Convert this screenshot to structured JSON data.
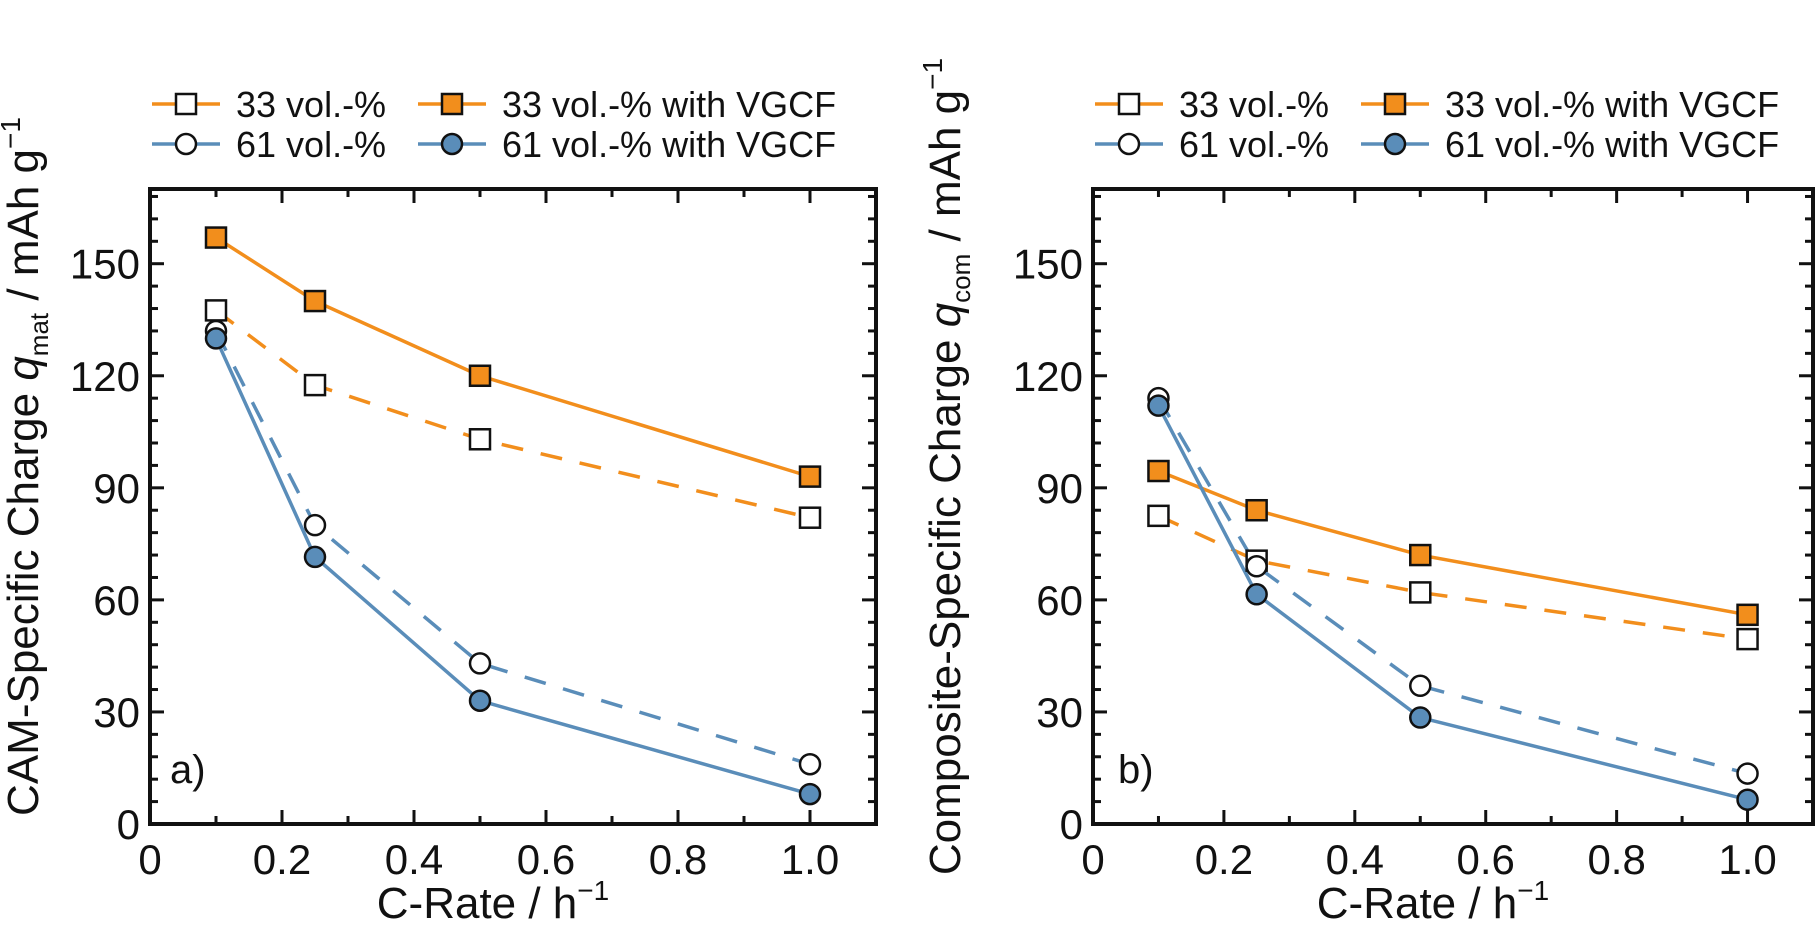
{
  "chart_data": [
    {
      "type": "line",
      "panel_label": "a)",
      "xlabel": {
        "text": "C-Rate / h",
        "sup": "−1"
      },
      "ylabel": {
        "prefix": "CAM-Specific Charge ",
        "var": "q",
        "sub": "mat",
        "suffix": " / mAh g",
        "sup": "−1"
      },
      "xlim": [
        0,
        1.1
      ],
      "ylim": [
        0,
        170
      ],
      "xticks": [
        0,
        0.2,
        0.4,
        0.6,
        0.8,
        1.0
      ],
      "xtick_labels": [
        "0",
        "0.2",
        "0.4",
        "0.6",
        "0.8",
        "1.0"
      ],
      "yticks": [
        0,
        30,
        60,
        90,
        120,
        150
      ],
      "ytick_labels": [
        "0",
        "30",
        "60",
        "90",
        "120",
        "150"
      ],
      "grid": false,
      "legend_position": "top",
      "x": [
        0.1,
        0.25,
        0.5,
        1.0
      ],
      "series": [
        {
          "name": "33 vol.-%",
          "values": [
            137.5,
            117.5,
            103,
            82
          ],
          "color": "#F28E1C",
          "marker": "square-open",
          "line": "dashed"
        },
        {
          "name": "33 vol.-% with VGCF",
          "values": [
            157,
            140,
            120,
            93
          ],
          "color": "#F28E1C",
          "marker": "square-filled",
          "line": "solid"
        },
        {
          "name": "61 vol.-%",
          "values": [
            132,
            80,
            43,
            16
          ],
          "color": "#5A8DB9",
          "marker": "circle-open",
          "line": "dashed"
        },
        {
          "name": "61 vol.-% with VGCF",
          "values": [
            130,
            71.5,
            33,
            8
          ],
          "color": "#5A8DB9",
          "marker": "circle-filled",
          "line": "solid"
        }
      ]
    },
    {
      "type": "line",
      "panel_label": "b)",
      "xlabel": {
        "text": "C-Rate / h",
        "sup": "−1"
      },
      "ylabel": {
        "prefix": "Composite-Specific Charge ",
        "var": "q",
        "sub": "com",
        "suffix": " / mAh g",
        "sup": "−1"
      },
      "xlim": [
        0,
        1.1
      ],
      "ylim": [
        0,
        170
      ],
      "xticks": [
        0,
        0.2,
        0.4,
        0.6,
        0.8,
        1.0
      ],
      "xtick_labels": [
        "0",
        "0.2",
        "0.4",
        "0.6",
        "0.8",
        "1.0"
      ],
      "yticks": [
        0,
        30,
        60,
        90,
        120,
        150
      ],
      "ytick_labels": [
        "0",
        "30",
        "60",
        "90",
        "120",
        "150"
      ],
      "grid": false,
      "legend_position": "top",
      "x": [
        0.1,
        0.25,
        0.5,
        1.0
      ],
      "series": [
        {
          "name": "33 vol.-%",
          "values": [
            82.5,
            70.5,
            62,
            49.5
          ],
          "color": "#F28E1C",
          "marker": "square-open",
          "line": "dashed"
        },
        {
          "name": "33 vol.-% with VGCF",
          "values": [
            94.5,
            84,
            72,
            56
          ],
          "color": "#F28E1C",
          "marker": "square-filled",
          "line": "solid"
        },
        {
          "name": "61 vol.-%",
          "values": [
            114,
            69,
            37,
            13.5
          ],
          "color": "#5A8DB9",
          "marker": "circle-open",
          "line": "dashed"
        },
        {
          "name": "61 vol.-% with VGCF",
          "values": [
            112,
            61.5,
            28.5,
            6.5
          ],
          "color": "#5A8DB9",
          "marker": "circle-filled",
          "line": "solid"
        }
      ]
    }
  ]
}
